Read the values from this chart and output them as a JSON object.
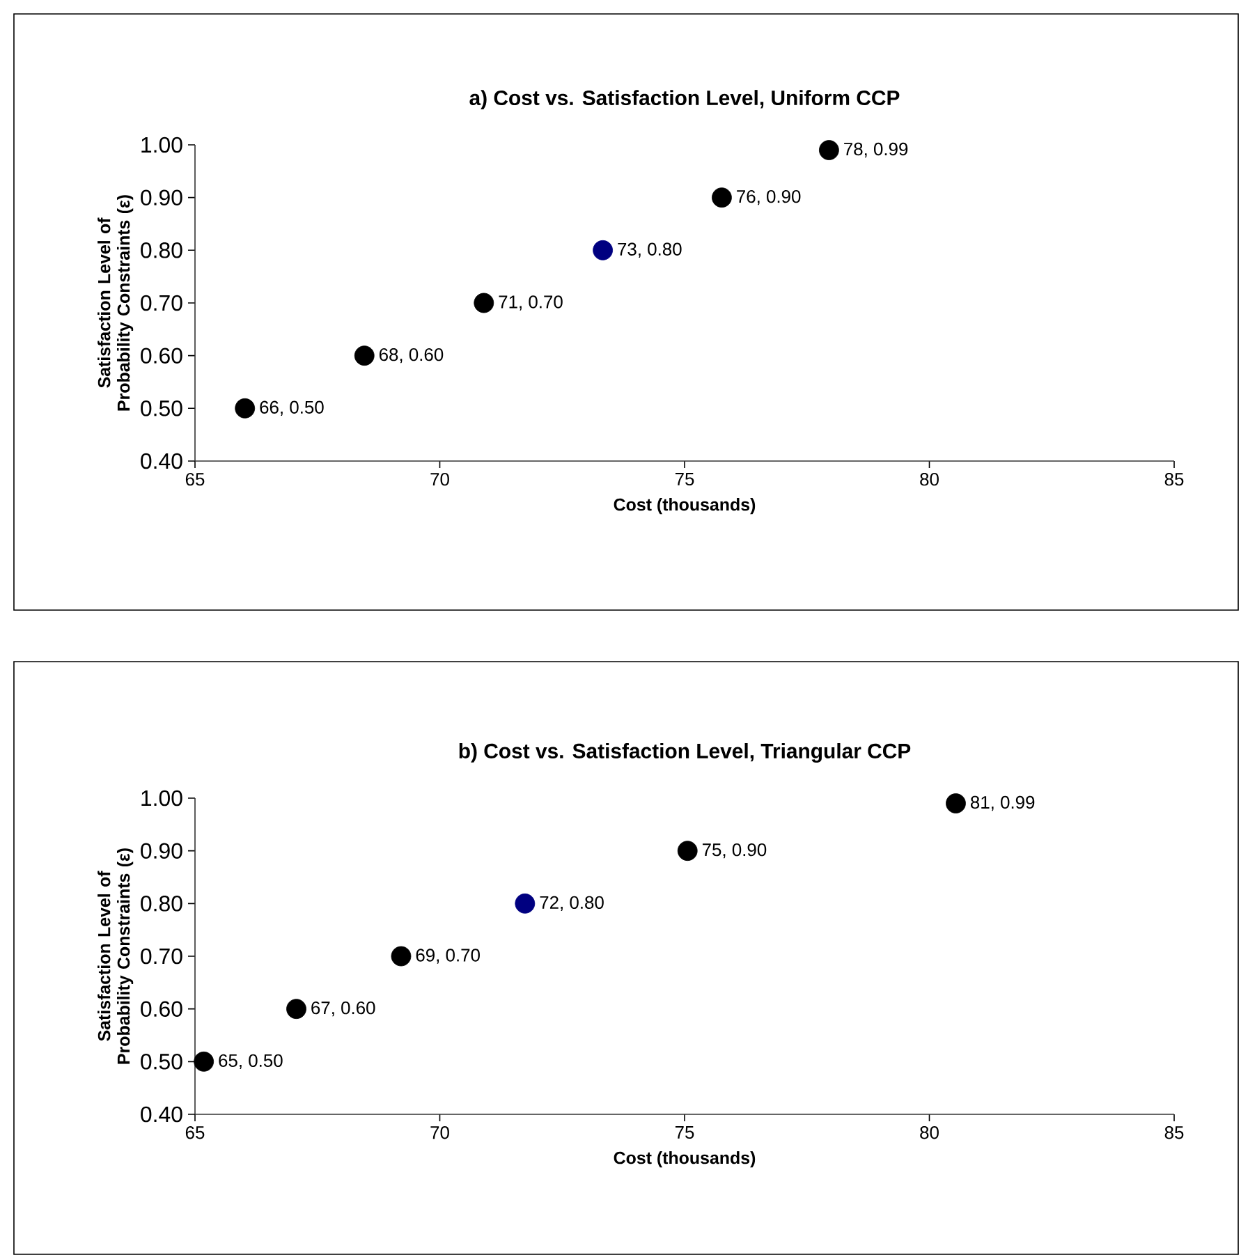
{
  "chart_data": [
    {
      "type": "scatter",
      "title": "a)  Cost vs. Satisfaction Level, Uniform CCP",
      "xlabel": "Cost (thousands)",
      "ylabel": "Satisfaction Level of Probability Constraints (ε)",
      "x": [
        66.02,
        68.46,
        70.9,
        73.33,
        75.76,
        77.95
      ],
      "values": [
        0.5,
        0.6,
        0.7,
        0.8,
        0.9,
        0.99
      ],
      "colors": [
        "#000000",
        "#000000",
        "#000000",
        "#000080",
        "#000000",
        "#000000"
      ],
      "value_labels": [
        "66, 0.50",
        "68, 0.60",
        "71, 0.70",
        "73, 0.80",
        "76, 0.90",
        "78, 0.99"
      ],
      "marker": "circle",
      "grid": false,
      "xlim": [
        65,
        85
      ],
      "xticks": [
        65,
        70,
        75,
        80,
        85
      ],
      "ylim": [
        0.4,
        1.0
      ],
      "yticks": [
        {
          "value": 0.4,
          "label": "0.40"
        },
        {
          "value": 0.5,
          "label": "0.50"
        },
        {
          "value": 0.6,
          "label": "0.60"
        },
        {
          "value": 0.7,
          "label": "0.70"
        },
        {
          "value": 0.8,
          "label": "0.80"
        },
        {
          "value": 0.9,
          "label": "0.90"
        },
        {
          "value": 1.0,
          "label": "1.00"
        }
      ]
    },
    {
      "type": "scatter",
      "title": "b)  Cost vs. Satisfaction Level, Triangular CCP",
      "xlabel": "Cost (thousands)",
      "ylabel": "Satisfaction Level of Probability Constraints (ε)",
      "x": [
        65.18,
        67.07,
        69.21,
        71.74,
        75.06,
        80.54
      ],
      "values": [
        0.5,
        0.6,
        0.7,
        0.8,
        0.9,
        0.99
      ],
      "colors": [
        "#000000",
        "#000000",
        "#000000",
        "#000080",
        "#000000",
        "#000000"
      ],
      "value_labels": [
        "65, 0.50",
        "67, 0.60",
        "69, 0.70",
        "72, 0.80",
        "75, 0.90",
        "81, 0.99"
      ],
      "marker": "circle",
      "grid": false,
      "xlim": [
        65,
        85
      ],
      "xticks": [
        65,
        70,
        75,
        80,
        85
      ],
      "ylim": [
        0.4,
        1.0
      ],
      "yticks": [
        {
          "value": 0.4,
          "label": "0.40"
        },
        {
          "value": 0.5,
          "label": "0.50"
        },
        {
          "value": 0.6,
          "label": "0.60"
        },
        {
          "value": 0.7,
          "label": "0.70"
        },
        {
          "value": 0.8,
          "label": "0.80"
        },
        {
          "value": 0.9,
          "label": "0.90"
        },
        {
          "value": 1.0,
          "label": "1.00"
        }
      ]
    }
  ]
}
